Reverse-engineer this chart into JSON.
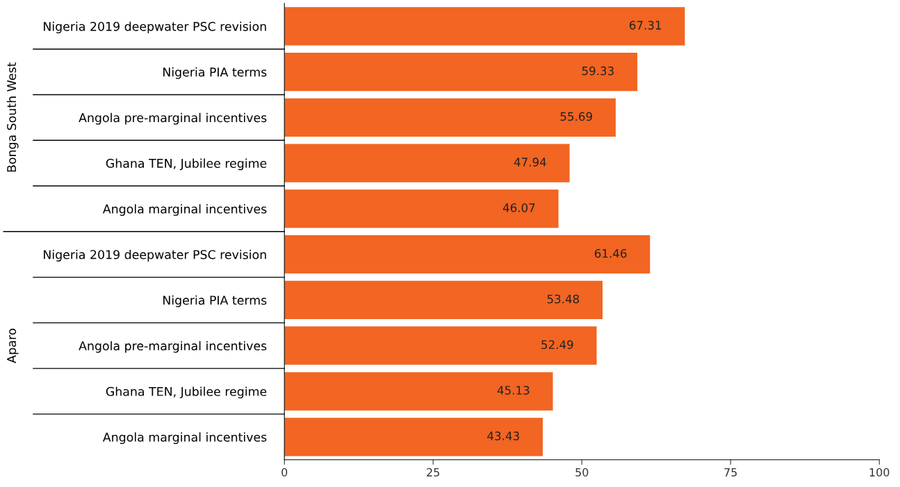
{
  "chart_data": {
    "type": "bar",
    "orientation": "horizontal",
    "categories": [
      "Nigeria 2019 deepwater PSC revision",
      "Nigeria PIA terms",
      "Angola pre-marginal incentives",
      "Ghana TEN, Jubilee regime",
      "Angola marginal incentives",
      "Nigeria 2019 deepwater PSC revision",
      "Nigeria PIA terms",
      "Angola pre-marginal incentives",
      "Ghana TEN, Jubilee regime",
      "Angola marginal incentives"
    ],
    "values": [
      67.31,
      59.33,
      55.69,
      47.94,
      46.07,
      61.46,
      53.48,
      52.49,
      45.13,
      43.43
    ],
    "color": "#f26522",
    "xlim": [
      0,
      100
    ],
    "xticks": [
      0,
      25,
      50,
      75,
      100
    ],
    "data_labels": true,
    "grid": false,
    "legend": false,
    "annotations": [
      "Bonga South West",
      "Aparo"
    ]
  }
}
